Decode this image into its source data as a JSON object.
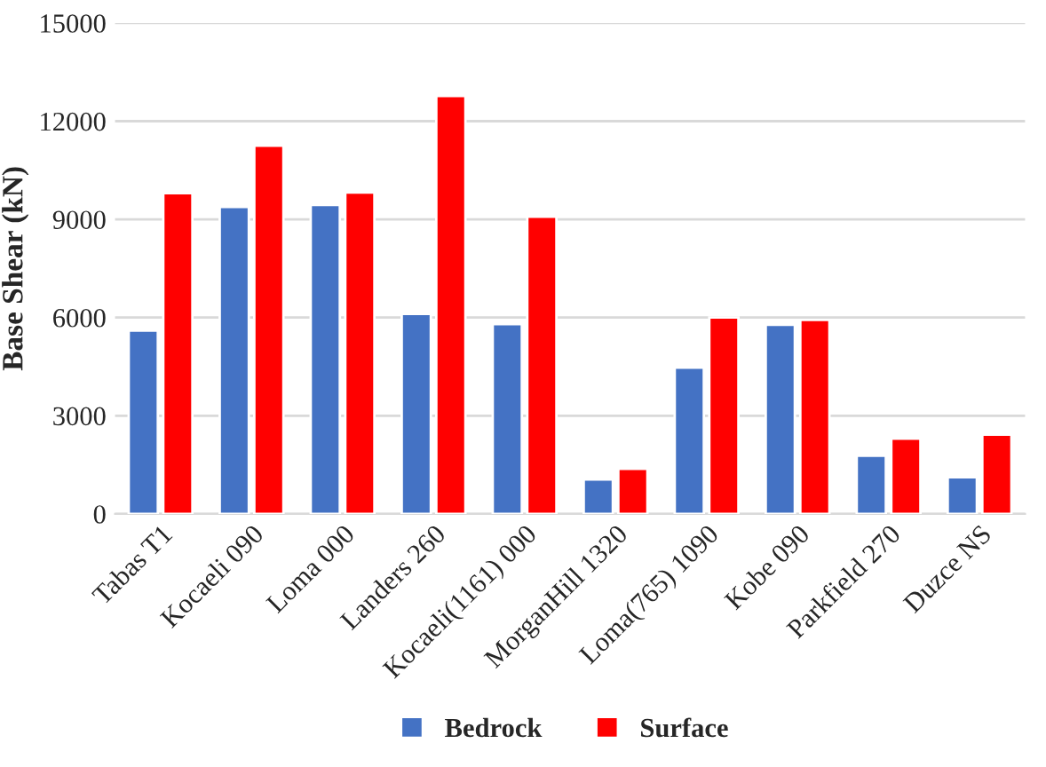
{
  "chart_data": {
    "type": "bar",
    "ylabel": "Base Shear (kN)",
    "categories": [
      "Tabas T1",
      "Kocaeli 090",
      "Loma 000",
      "Landers 260",
      "Kocaeli(1161) 000",
      "MorganHill 1320",
      "Loma(765) 1090",
      "Kobe 090",
      "Parkfield 270",
      "Duzce NS"
    ],
    "series": [
      {
        "name": "Bedrock",
        "color": "#4472c4",
        "values": [
          5600,
          9380,
          9440,
          6110,
          5800,
          1050,
          4470,
          5780,
          1780,
          1120
        ]
      },
      {
        "name": "Surface",
        "color": "#ff0000",
        "values": [
          9800,
          11250,
          9820,
          12770,
          9080,
          1380,
          6000,
          5930,
          2300,
          2420
        ]
      }
    ],
    "ylim": [
      0,
      15000
    ],
    "yticks": [
      0,
      3000,
      6000,
      9000,
      12000,
      15000
    ],
    "grid": "y",
    "legend": "bottom"
  }
}
